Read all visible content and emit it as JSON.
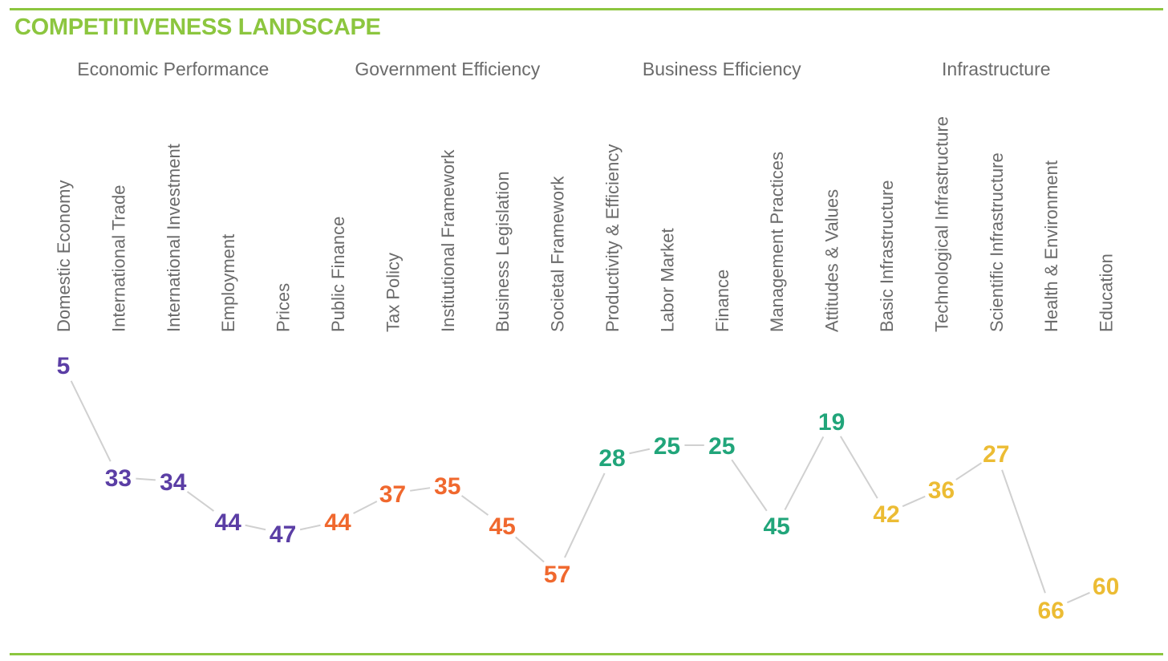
{
  "title": "COMPETITIVENESS LANDSCAPE",
  "colors": {
    "accent": "#8cc63f",
    "economic_performance": "#5b3ea5",
    "government_efficiency": "#f0682e",
    "business_efficiency": "#21a57a",
    "infrastructure": "#ecbc34",
    "connector": "#d0d0d0",
    "label_text": "#6b6b6b"
  },
  "chart_data": {
    "type": "line",
    "title": "COMPETITIVENESS LANDSCAPE",
    "note": "values are ranks; lower rank plotted higher",
    "groups": [
      {
        "name": "Economic Performance",
        "color": "#5b3ea5",
        "categories": [
          "Domestic Economy",
          "International Trade",
          "International Investment",
          "Employment",
          "Prices"
        ],
        "values": [
          5,
          33,
          34,
          44,
          47
        ]
      },
      {
        "name": "Government Efficiency",
        "color": "#f0682e",
        "categories": [
          "Public Finance",
          "Tax Policy",
          "Institutional Framework",
          "Business Legislation",
          "Societal Framework"
        ],
        "values": [
          44,
          37,
          35,
          45,
          57
        ]
      },
      {
        "name": "Business Efficiency",
        "color": "#21a57a",
        "categories": [
          "Productivity & Efficiency",
          "Labor Market",
          "Finance",
          "Management Practices",
          "Attitudes & Values"
        ],
        "values": [
          28,
          25,
          25,
          45,
          19
        ]
      },
      {
        "name": "Infrastructure",
        "color": "#ecbc34",
        "categories": [
          "Basic Infrastructure",
          "Technological Infrastructure",
          "Scientific Infrastructure",
          "Health & Environment",
          "Education"
        ],
        "values": [
          42,
          36,
          27,
          66,
          60
        ]
      }
    ],
    "grid": false,
    "legend": "none"
  }
}
